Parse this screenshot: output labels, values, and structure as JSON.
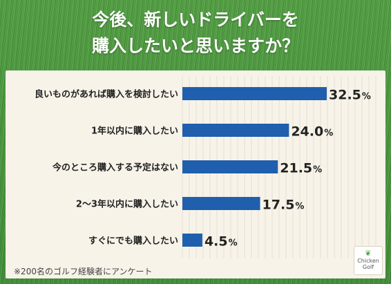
{
  "title": [
    "今後、新しいドライバーを",
    "購入したいと思いますか？"
  ],
  "chart_data": {
    "type": "bar",
    "orientation": "horizontal",
    "categories": [
      "良いものがあれば購入を検討したい",
      "1年以内に購入したい",
      "今のところ購入する予定はない",
      "2〜3年以内に購入したい",
      "すぐにでも購入したい"
    ],
    "values": [
      32.5,
      24.0,
      21.5,
      17.5,
      4.5
    ],
    "value_labels": [
      "32.5",
      "24.0",
      "21.5",
      "17.5",
      "4.5"
    ],
    "unit": "%",
    "xlim": [
      0,
      32.5
    ],
    "grid": true,
    "bar_color": "#1f5fae"
  },
  "footnote": "※200名のゴルフ経験者にアンケート",
  "logo": {
    "line1": "Chicken",
    "line2": "Golf"
  },
  "colors": {
    "panel": "#f7f3e9",
    "grass": "#4a983d",
    "text": "#222222"
  }
}
